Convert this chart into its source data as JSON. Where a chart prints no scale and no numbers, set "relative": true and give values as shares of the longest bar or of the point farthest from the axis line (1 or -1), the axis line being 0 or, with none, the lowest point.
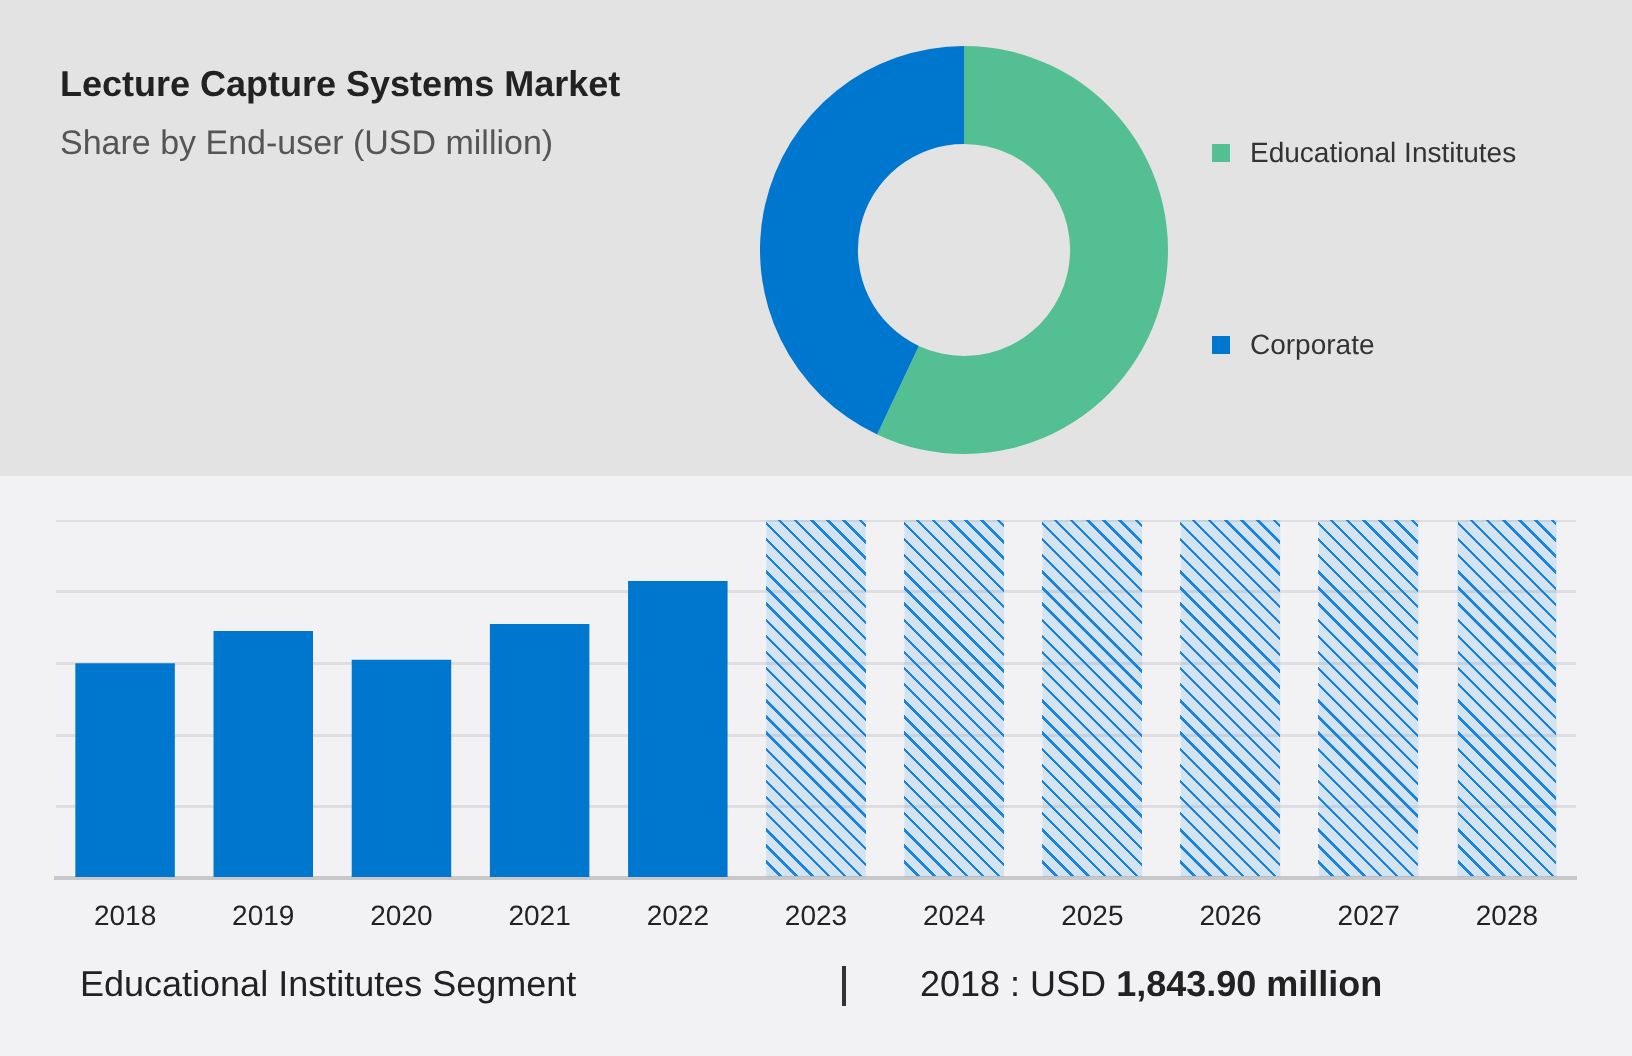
{
  "chart_data": [
    {
      "type": "donut",
      "title": "Lecture Capture Systems Market",
      "subtitle": "Share by End-user (USD million)",
      "categories": [
        "Educational Institutes",
        "Corporate"
      ],
      "values": [
        57,
        43
      ],
      "colors": [
        "#55bf94",
        "#0077cf"
      ],
      "legend": "right"
    },
    {
      "type": "bar",
      "relative": true,
      "categories": [
        "2018",
        "2019",
        "2020",
        "2021",
        "2022",
        "2023",
        "2024",
        "2025",
        "2026",
        "2027",
        "2028"
      ],
      "series": [
        {
          "color": "#0077cf",
          "values": [
            0.6,
            0.69,
            0.61,
            0.71,
            0.83,
            null,
            null,
            null,
            null,
            null,
            null
          ]
        },
        {
          "color": "#1a85e0",
          "values": [
            null,
            null,
            null,
            null,
            null,
            1,
            1,
            1,
            1,
            1,
            1
          ]
        }
      ],
      "grid": "y",
      "annotations": [
        "Educational Institutes Segment",
        "2018 : USD 1,843.90 million"
      ]
    }
  ]
}
